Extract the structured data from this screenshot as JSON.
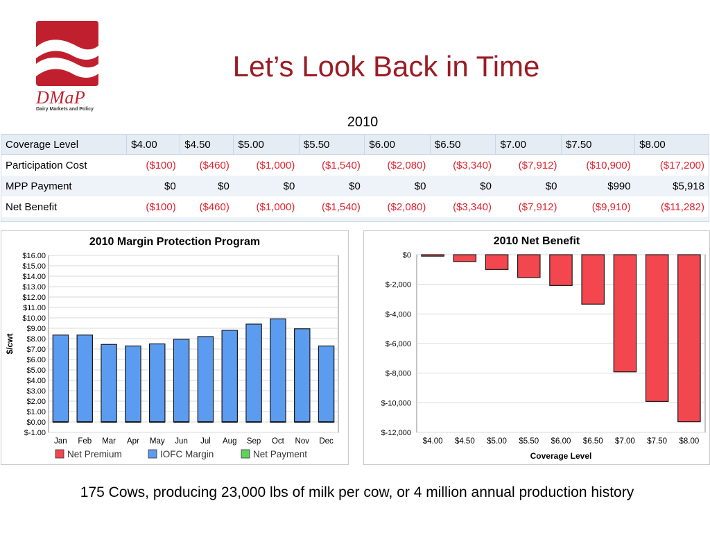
{
  "logo": {
    "name": "DMaP",
    "tagline": "Dairy Markets and Policy"
  },
  "title": "Let’s Look Back in Time",
  "year_label": "2010",
  "table": {
    "headers": [
      "Coverage Level",
      "$4.00",
      "$4.50",
      "$5.00",
      "$5.50",
      "$6.00",
      "$6.50",
      "$7.00",
      "$7.50",
      "$8.00"
    ],
    "rows": [
      {
        "label": "Participation Cost",
        "values": [
          "($100)",
          "($460)",
          "($1,000)",
          "($1,540)",
          "($2,080)",
          "($3,340)",
          "($7,912)",
          "($10,900)",
          "($17,200)"
        ]
      },
      {
        "label": "MPP Payment",
        "values": [
          "$0",
          "$0",
          "$0",
          "$0",
          "$0",
          "$0",
          "$0",
          "$990",
          "$5,918"
        ]
      },
      {
        "label": "Net Benefit",
        "values": [
          "($100)",
          "($460)",
          "($1,000)",
          "($1,540)",
          "($2,080)",
          "($3,340)",
          "($7,912)",
          "($9,910)",
          "($11,282)"
        ]
      }
    ]
  },
  "colors": {
    "title": "#9b1c24",
    "negative": "#e0242f",
    "iofc_bar": "#5b9cf0",
    "net_premium": "#f2474f",
    "net_payment": "#5fd35f"
  },
  "footer": "175 Cows, producing 23,000 lbs of milk per cow, or 4 million annual production history",
  "chart_data": [
    {
      "type": "bar",
      "title": "2010 Margin Protection Program",
      "ylabel": "$/cwt",
      "xlabel": "",
      "ylim": [
        -1.0,
        16.0
      ],
      "yticks": [
        "$-1.00",
        "$0.00",
        "$1.00",
        "$2.00",
        "$3.00",
        "$4.00",
        "$5.00",
        "$6.00",
        "$7.00",
        "$8.00",
        "$9.00",
        "$10.00",
        "$11.00",
        "$12.00",
        "$13.00",
        "$14.00",
        "$15.00",
        "$16.00"
      ],
      "grid": true,
      "legend_position": "bottom",
      "categories": [
        "Jan",
        "Feb",
        "Mar",
        "Apr",
        "May",
        "Jun",
        "Jul",
        "Aug",
        "Sep",
        "Oct",
        "Nov",
        "Dec"
      ],
      "series": [
        {
          "name": "Net Premium",
          "color": "#f2474f",
          "values": [
            0,
            0,
            0,
            0,
            0,
            0,
            0,
            0,
            0,
            0,
            0,
            0
          ]
        },
        {
          "name": "IOFC Margin",
          "color": "#5b9cf0",
          "values": [
            8.35,
            8.35,
            7.45,
            7.3,
            7.5,
            7.95,
            8.2,
            8.8,
            9.4,
            9.9,
            8.95,
            7.3
          ]
        },
        {
          "name": "Net Payment",
          "color": "#5fd35f",
          "values": [
            0,
            0,
            0,
            0,
            0,
            0,
            0,
            0,
            0,
            0,
            0,
            0
          ]
        }
      ]
    },
    {
      "type": "bar",
      "title": "2010 Net Benefit",
      "xlabel": "Coverage Level",
      "ylabel": "",
      "ylim": [
        -12000,
        0
      ],
      "yticks": [
        "$-12,000",
        "$-10,000",
        "$-8,000",
        "$-6,000",
        "$-4,000",
        "$-2,000",
        "$0"
      ],
      "grid": true,
      "categories": [
        "$4.00",
        "$4.50",
        "$5.00",
        "$5.50",
        "$6.00",
        "$6.50",
        "$7.00",
        "$7.50",
        "$8.00"
      ],
      "values": [
        -100,
        -460,
        -1000,
        -1540,
        -2080,
        -3340,
        -7912,
        -9910,
        -11282
      ]
    }
  ]
}
